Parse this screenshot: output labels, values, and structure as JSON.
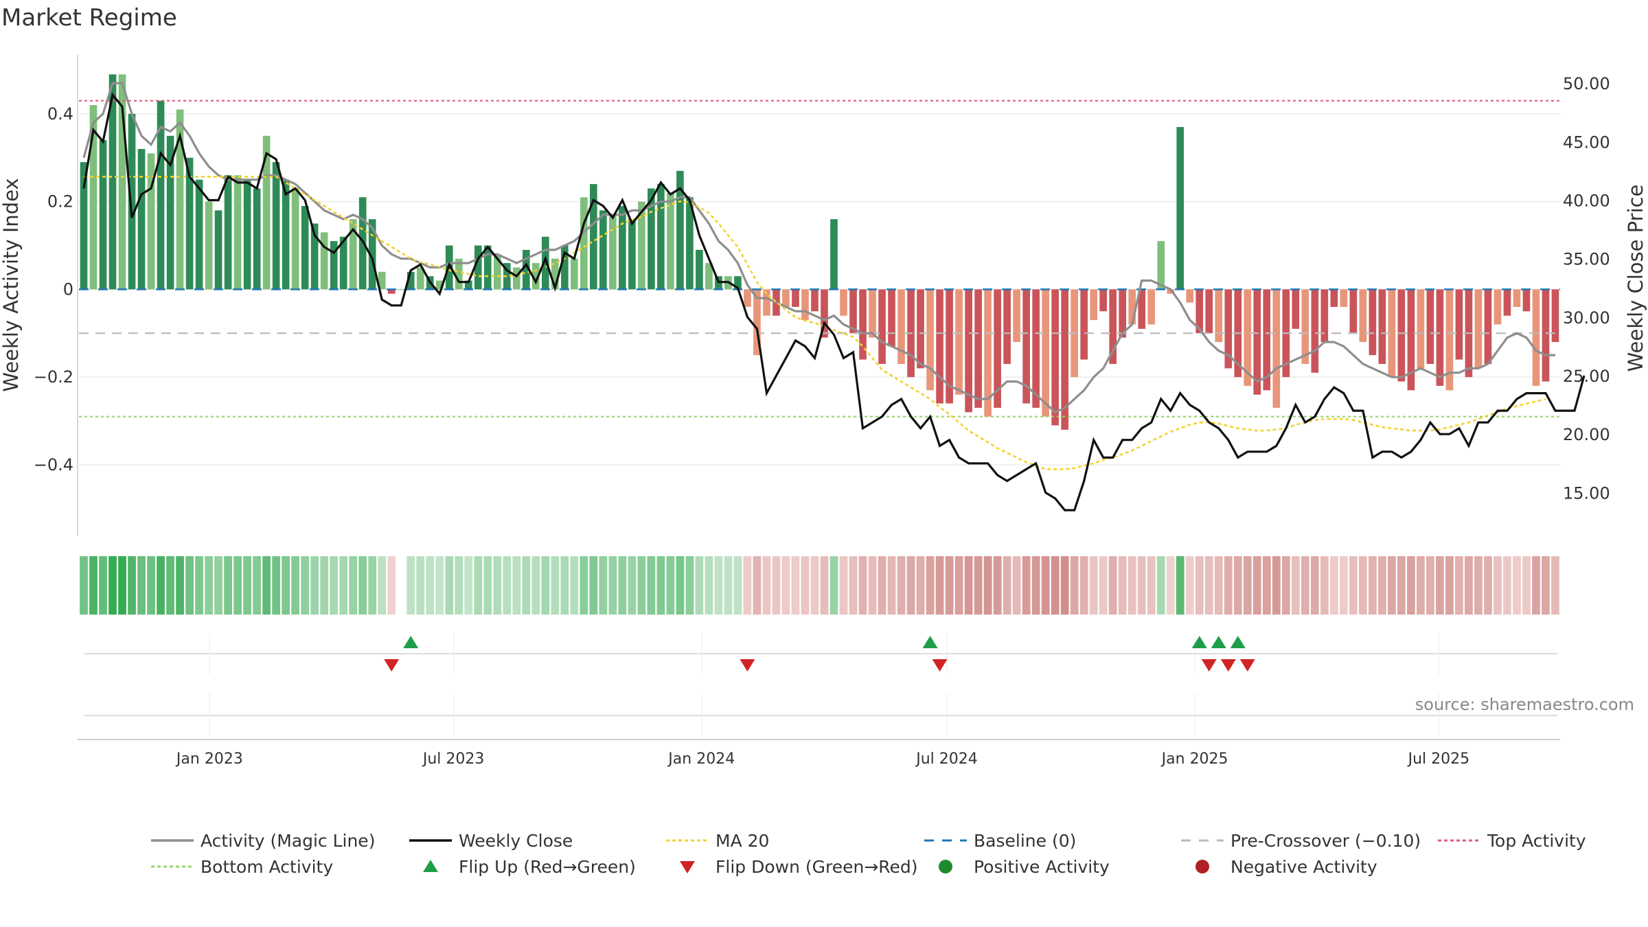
{
  "chart_data": {
    "type": "bar",
    "title": "Market Regime",
    "source": "source: sharemaestro.com",
    "left_axis": {
      "label": "Weekly Activity Index",
      "ylim": [
        -0.53,
        0.55
      ],
      "ticks": [
        {
          "v": 0.4,
          "t": "0.4"
        },
        {
          "v": 0.2,
          "t": "0.2"
        },
        {
          "v": 0,
          "t": "0"
        },
        {
          "v": -0.2,
          "t": "−0.2"
        },
        {
          "v": -0.4,
          "t": "−0.4"
        }
      ]
    },
    "right_axis": {
      "label": "Weekly Close Price",
      "ylim": [
        12.5,
        53.0
      ],
      "ticks": [
        {
          "v": 50,
          "t": "50.00"
        },
        {
          "v": 45,
          "t": "45.00"
        },
        {
          "v": 40,
          "t": "40.00"
        },
        {
          "v": 35,
          "t": "35.00"
        },
        {
          "v": 30,
          "t": "30.00"
        },
        {
          "v": 25,
          "t": "25.00"
        },
        {
          "v": 20,
          "t": "20.00"
        },
        {
          "v": 15,
          "t": "15.00"
        }
      ]
    },
    "x_axis": {
      "start": "2022-09-26",
      "end": "2025-09-29",
      "ticks": [
        {
          "date": "2023-01-01",
          "label": "Jan 2023"
        },
        {
          "date": "2023-07-01",
          "label": "Jul 2023"
        },
        {
          "date": "2024-01-01",
          "label": "Jan 2024"
        },
        {
          "date": "2024-07-01",
          "label": "Jul 2024"
        },
        {
          "date": "2025-01-01",
          "label": "Jan 2025"
        },
        {
          "date": "2025-07-01",
          "label": "Jul 2025"
        }
      ]
    },
    "reference_lines": {
      "top_activity": 0.43,
      "bottom_activity": -0.29,
      "pre_crossover": -0.1,
      "baseline": 0
    },
    "activity": [
      0.29,
      0.42,
      0.34,
      0.49,
      0.49,
      0.4,
      0.32,
      0.31,
      0.43,
      0.35,
      0.41,
      0.3,
      0.25,
      0.2,
      0.18,
      0.26,
      0.26,
      0.25,
      0.23,
      0.35,
      0.29,
      0.25,
      0.23,
      0.19,
      0.15,
      0.13,
      0.11,
      0.12,
      0.16,
      0.21,
      0.16,
      0.04,
      -0.01,
      0.0,
      0.04,
      0.05,
      0.03,
      0.02,
      0.1,
      0.07,
      0.02,
      0.1,
      0.1,
      0.08,
      0.06,
      0.05,
      0.09,
      0.06,
      0.12,
      0.07,
      0.1,
      0.07,
      0.21,
      0.24,
      0.18,
      0.17,
      0.19,
      0.16,
      0.2,
      0.23,
      0.24,
      0.22,
      0.27,
      0.21,
      0.09,
      0.06,
      0.03,
      0.03,
      0.03,
      -0.04,
      -0.15,
      -0.06,
      -0.06,
      -0.04,
      -0.04,
      -0.07,
      -0.05,
      -0.11,
      0.16,
      -0.06,
      -0.1,
      -0.16,
      -0.11,
      -0.17,
      -0.13,
      -0.17,
      -0.2,
      -0.18,
      -0.23,
      -0.26,
      -0.26,
      -0.24,
      -0.28,
      -0.27,
      -0.29,
      -0.27,
      -0.17,
      -0.12,
      -0.26,
      -0.27,
      -0.29,
      -0.31,
      -0.32,
      -0.2,
      -0.16,
      -0.07,
      -0.05,
      -0.17,
      -0.11,
      -0.08,
      -0.09,
      -0.08,
      0.11,
      -0.01,
      0.37,
      -0.03,
      -0.1,
      -0.1,
      -0.12,
      -0.18,
      -0.2,
      -0.22,
      -0.24,
      -0.23,
      -0.27,
      -0.2,
      -0.09,
      -0.17,
      -0.19,
      -0.12,
      -0.04,
      -0.04,
      -0.1,
      -0.12,
      -0.15,
      -0.17,
      -0.2,
      -0.21,
      -0.23,
      -0.18,
      -0.17,
      -0.22,
      -0.23,
      -0.16,
      -0.2,
      -0.18,
      -0.17,
      -0.08,
      -0.06,
      -0.04,
      -0.05,
      -0.22,
      -0.21,
      -0.12
    ],
    "magic_line": [
      0.3,
      0.38,
      0.4,
      0.47,
      0.47,
      0.4,
      0.35,
      0.33,
      0.37,
      0.36,
      0.38,
      0.35,
      0.31,
      0.28,
      0.26,
      0.25,
      0.25,
      0.25,
      0.25,
      0.26,
      0.26,
      0.25,
      0.24,
      0.22,
      0.2,
      0.18,
      0.17,
      0.16,
      0.17,
      0.16,
      0.14,
      0.1,
      0.08,
      0.07,
      0.07,
      0.06,
      0.05,
      0.05,
      0.06,
      0.06,
      0.06,
      0.07,
      0.08,
      0.08,
      0.07,
      0.06,
      0.07,
      0.08,
      0.09,
      0.09,
      0.1,
      0.11,
      0.13,
      0.15,
      0.17,
      0.17,
      0.17,
      0.18,
      0.18,
      0.19,
      0.2,
      0.2,
      0.21,
      0.21,
      0.18,
      0.15,
      0.11,
      0.09,
      0.06,
      0.01,
      -0.02,
      -0.02,
      -0.03,
      -0.04,
      -0.05,
      -0.05,
      -0.06,
      -0.07,
      -0.06,
      -0.08,
      -0.09,
      -0.1,
      -0.1,
      -0.12,
      -0.13,
      -0.14,
      -0.15,
      -0.17,
      -0.18,
      -0.2,
      -0.22,
      -0.23,
      -0.24,
      -0.25,
      -0.25,
      -0.23,
      -0.21,
      -0.21,
      -0.22,
      -0.24,
      -0.26,
      -0.28,
      -0.27,
      -0.25,
      -0.23,
      -0.2,
      -0.18,
      -0.14,
      -0.1,
      -0.08,
      0.02,
      0.02,
      0.01,
      0.0,
      -0.03,
      -0.07,
      -0.09,
      -0.12,
      -0.14,
      -0.15,
      -0.17,
      -0.19,
      -0.21,
      -0.2,
      -0.18,
      -0.17,
      -0.16,
      -0.15,
      -0.14,
      -0.12,
      -0.12,
      -0.13,
      -0.15,
      -0.17,
      -0.18,
      -0.19,
      -0.2,
      -0.2,
      -0.19,
      -0.18,
      -0.19,
      -0.2,
      -0.19,
      -0.19,
      -0.18,
      -0.18,
      -0.17,
      -0.14,
      -0.11,
      -0.1,
      -0.11,
      -0.14,
      -0.15,
      -0.15
    ],
    "weekly_close": [
      41.0,
      46.0,
      45.0,
      49.0,
      48.0,
      38.5,
      40.5,
      41.0,
      44.0,
      43.0,
      45.5,
      42.0,
      41.0,
      40.0,
      40.0,
      42.0,
      41.5,
      41.5,
      41.0,
      44.0,
      43.5,
      40.5,
      41.0,
      40.0,
      37.0,
      36.0,
      35.5,
      36.5,
      37.5,
      36.5,
      35.0,
      31.5,
      31.0,
      31.0,
      34.0,
      34.5,
      33.0,
      32.0,
      34.5,
      33.0,
      33.0,
      35.0,
      36.0,
      35.0,
      34.0,
      33.5,
      34.5,
      33.0,
      35.0,
      32.5,
      35.5,
      35.0,
      38.0,
      40.0,
      39.5,
      38.5,
      40.0,
      38.0,
      39.0,
      40.0,
      41.5,
      40.5,
      41.0,
      40.0,
      37.0,
      35.0,
      33.0,
      33.0,
      32.5,
      30.0,
      29.0,
      23.5,
      25.0,
      26.5,
      28.0,
      27.5,
      26.5,
      29.5,
      28.5,
      26.5,
      27.0,
      20.5,
      21.0,
      21.5,
      22.5,
      23.0,
      21.5,
      20.5,
      21.5,
      19.0,
      19.5,
      18.0,
      17.5,
      17.5,
      17.5,
      16.5,
      16.0,
      16.5,
      17.0,
      17.5,
      15.0,
      14.5,
      13.5,
      13.5,
      16.0,
      19.5,
      18.0,
      18.0,
      19.5,
      19.5,
      20.5,
      21.0,
      23.0,
      22.0,
      23.5,
      22.5,
      22.0,
      21.0,
      20.5,
      19.5,
      18.0,
      18.5,
      18.5,
      18.5,
      19.0,
      20.5,
      22.5,
      21.0,
      21.5,
      23.0,
      24.0,
      23.5,
      22.0,
      22.0,
      18.0,
      18.5,
      18.5,
      18.0,
      18.5,
      19.5,
      21.0,
      20.0,
      20.0,
      20.5,
      19.0,
      21.0,
      21.0,
      22.0,
      22.0,
      23.0,
      23.5,
      23.5,
      23.5,
      22.0,
      22.0,
      22.0,
      25.0
    ],
    "ma20": [
      42.0,
      42.0,
      42.0,
      42.0,
      42.0,
      42.0,
      42.0,
      42.0,
      42.0,
      42.0,
      42.0,
      42.0,
      42.0,
      42.0,
      42.0,
      42.0,
      42.0,
      42.0,
      42.0,
      42.0,
      42.0,
      41.5,
      41.0,
      40.5,
      40.0,
      39.5,
      39.0,
      38.5,
      38.0,
      37.5,
      37.0,
      36.5,
      36.0,
      35.5,
      35.0,
      34.7,
      34.5,
      34.3,
      34.0,
      33.9,
      33.7,
      33.5,
      33.5,
      33.5,
      33.5,
      33.6,
      33.8,
      34.0,
      34.3,
      34.6,
      35.0,
      35.5,
      36.0,
      36.5,
      37.0,
      37.5,
      38.0,
      38.3,
      38.6,
      39.0,
      39.3,
      39.6,
      39.9,
      39.8,
      39.4,
      38.9,
      38.0,
      37.0,
      36.0,
      34.5,
      33.0,
      32.0,
      31.3,
      30.6,
      30.0,
      29.7,
      29.5,
      29.2,
      28.9,
      28.6,
      28.3,
      27.5,
      26.5,
      25.5,
      25.0,
      24.5,
      24.0,
      23.5,
      23.0,
      22.3,
      21.7,
      21.0,
      20.3,
      19.8,
      19.3,
      18.8,
      18.4,
      18.0,
      17.6,
      17.3,
      17.0,
      17.0,
      17.0,
      17.1,
      17.3,
      17.5,
      17.8,
      18.0,
      18.3,
      18.6,
      19.0,
      19.4,
      19.8,
      20.2,
      20.5,
      20.8,
      21.0,
      21.0,
      20.9,
      20.7,
      20.5,
      20.4,
      20.3,
      20.3,
      20.4,
      20.5,
      20.8,
      21.0,
      21.2,
      21.3,
      21.3,
      21.3,
      21.2,
      21.0,
      20.8,
      20.6,
      20.5,
      20.4,
      20.3,
      20.3,
      20.3,
      20.4,
      20.6,
      20.8,
      21.0,
      21.3,
      21.6,
      21.9,
      22.2,
      22.4,
      22.6,
      22.8,
      23.0
    ],
    "flip_up_weeks": [
      34,
      88,
      116,
      118,
      120
    ],
    "flip_down_weeks": [
      32,
      69,
      89,
      117,
      119,
      121
    ]
  },
  "legend": [
    {
      "key": "magic",
      "label": "Activity (Magic Line)",
      "color": "#8e8e8e"
    },
    {
      "key": "close",
      "label": "Weekly Close",
      "color": "#111111"
    },
    {
      "key": "ma20",
      "label": "MA 20",
      "color": "#f2d22e"
    },
    {
      "key": "baseline",
      "label": "Baseline (0)",
      "color": "#1f77b4"
    },
    {
      "key": "precross",
      "label": "Pre-Crossover (−0.10)",
      "color": "#bbbbbb"
    },
    {
      "key": "top",
      "label": "Top Activity",
      "color": "#e05c7c"
    },
    {
      "key": "bottom",
      "label": "Bottom Activity",
      "color": "#9ad46a"
    },
    {
      "key": "flipup",
      "label": "Flip Up (Red→Green)",
      "color": "#1e9e48"
    },
    {
      "key": "flipdown",
      "label": "Flip Down (Green→Red)",
      "color": "#d02424"
    },
    {
      "key": "pos",
      "label": "Positive Activity",
      "color": "#1e8a2e"
    },
    {
      "key": "neg",
      "label": "Negative Activity",
      "color": "#b01f22"
    }
  ],
  "colors": {
    "pos_strong": "#2e8b57",
    "pos_light": "#7fbf7b",
    "neg_strong": "#c9545a",
    "neg_light": "#e8967a"
  }
}
